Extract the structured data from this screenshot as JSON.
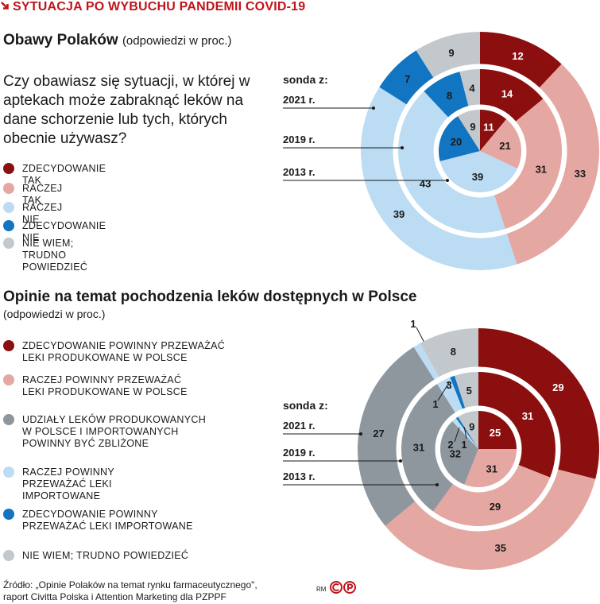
{
  "header": {
    "title": "SYTUACJA PO WYBUCHU PANDEMII COVID-19"
  },
  "chart1": {
    "title": "Obawy Polaków",
    "subtitle": "(odpowiedzi w proc.)",
    "question": "Czy obawiasz się sytuacji, w której w aptekach może zabraknąć leków na dane schorzenie lub tych, których obecnie używasz?",
    "legend": [
      {
        "label": "ZDECYDOWANIE TAK",
        "color": "#8b0f0f"
      },
      {
        "label": "RACZEJ TAK",
        "color": "#e5a7a1"
      },
      {
        "label": "RACZEJ NIE",
        "color": "#bcdcf3"
      },
      {
        "label": "ZDECYDOWANIE NIE",
        "color": "#1175c2"
      },
      {
        "label": "NIE WIEM; TRUDNO POWIEDZIEĆ",
        "color": "#c3c8cc"
      }
    ],
    "sonda_label": "sonda z:",
    "years": [
      "2021 r.",
      "2019 r.",
      "2013 r."
    ]
  },
  "chart2": {
    "title": "Opinie na temat pochodzenia leków dostępnych w Polsce",
    "subtitle": "(odpowiedzi w proc.)",
    "legend": [
      {
        "label": "ZDECYDOWANIE POWINNY PRZEWAŻAĆ LEKI PRODUKOWANE W POLSCE",
        "color": "#8b0f0f"
      },
      {
        "label": "RACZEJ POWINNY PRZEWAŻAĆ LEKI PRODUKOWANE W POLSCE",
        "color": "#e5a7a1"
      },
      {
        "label": "UDZIAŁY LEKÓW PRODUKOWANYCH W POLSCE I IMPORTOWANYCH POWINNY BYĆ ZBLIŻONE",
        "color": "#8f979e"
      },
      {
        "label": "RACZEJ POWINNY PRZEWAŻAĆ LEKI IMPORTOWANE",
        "color": "#bcdcf3"
      },
      {
        "label": "ZDECYDOWANIE POWINNY PRZEWAŻAĆ LEKI IMPORTOWANE",
        "color": "#1175c2"
      },
      {
        "label": "NIE WIEM; TRUDNO POWIEDZIEĆ",
        "color": "#c3c8cc"
      }
    ],
    "sonda_label": "sonda z:",
    "years": [
      "2021 r.",
      "2019 r.",
      "2013 r."
    ]
  },
  "source": {
    "line1": "Źródło: „Opinie Polaków na temat rynku farmaceutycznego\",",
    "line2": "raport Civitta Polska i Attention Marketing dla PZPPF",
    "rm": "RM"
  },
  "chart_data": [
    {
      "type": "pie",
      "variant": "nested-donut",
      "title": "Obawy Polaków",
      "categories": [
        "ZDECYDOWANIE TAK",
        "RACZEJ TAK",
        "RACZEJ NIE",
        "ZDECYDOWANIE NIE",
        "NIE WIEM; TRUDNO POWIEDZIEĆ"
      ],
      "colors": [
        "#8b0f0f",
        "#e5a7a1",
        "#bcdcf3",
        "#1175c2",
        "#c3c8cc"
      ],
      "series": [
        {
          "name": "2021 r.",
          "values": [
            12,
            33,
            39,
            7,
            9
          ]
        },
        {
          "name": "2019 r.",
          "values": [
            14,
            31,
            43,
            8,
            4
          ]
        },
        {
          "name": "2013 r.",
          "values": [
            11,
            21,
            39,
            20,
            9
          ]
        }
      ]
    },
    {
      "type": "pie",
      "variant": "nested-donut",
      "title": "Opinie na temat pochodzenia leków dostępnych w Polsce",
      "categories": [
        "ZDECYDOWANIE POWINNY PRZEWAŻAĆ LEKI PRODUKOWANE W POLSCE",
        "RACZEJ POWINNY PRZEWAŻAĆ LEKI PRODUKOWANE W POLSCE",
        "UDZIAŁY LEKÓW PRODUKOWANYCH W POLSCE I IMPORTOWANYCH POWINNY BYĆ ZBLIŻONE",
        "RACZEJ POWINNY PRZEWAŻAĆ LEKI IMPORTOWANE",
        "ZDECYDOWANIE POWINNY PRZEWAŻAĆ LEKI IMPORTOWANE",
        "NIE WIEM; TRUDNO POWIEDZIEĆ"
      ],
      "colors": [
        "#8b0f0f",
        "#e5a7a1",
        "#8f979e",
        "#bcdcf3",
        "#1175c2",
        "#c3c8cc"
      ],
      "series": [
        {
          "name": "2021 r.",
          "values": [
            29,
            35,
            27,
            1,
            0,
            8
          ]
        },
        {
          "name": "2019 r.",
          "values": [
            31,
            29,
            31,
            3,
            1,
            5
          ]
        },
        {
          "name": "2013 r.",
          "values": [
            25,
            31,
            32,
            2,
            1,
            9
          ]
        }
      ]
    }
  ]
}
